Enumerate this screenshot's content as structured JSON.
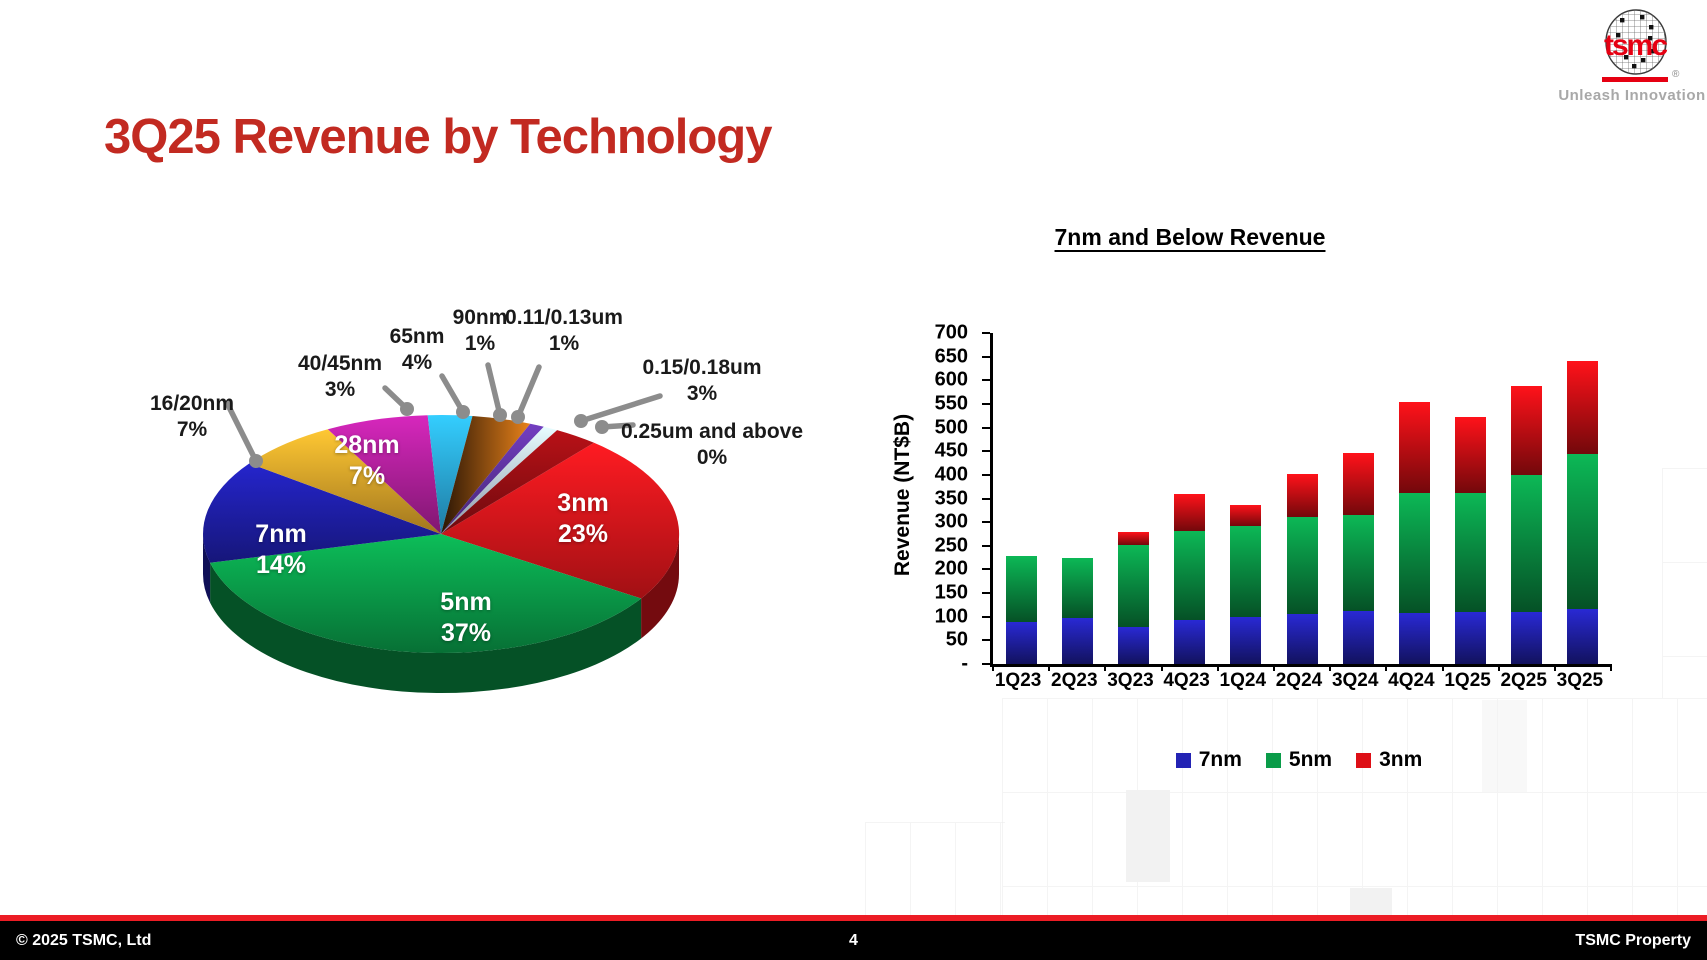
{
  "slide": {
    "title": "3Q25 Revenue by Technology",
    "logo": {
      "brand": "tsmc",
      "registered": "®",
      "tagline": "Unleash Innovation"
    },
    "footer": {
      "copyright": "© 2025 TSMC, Ltd",
      "page": "4",
      "property": "TSMC Property"
    }
  },
  "chart_data": [
    {
      "type": "pie",
      "title": "3Q25 Revenue by Technology",
      "unit": "%",
      "rotation_deg": 40,
      "leader_color": "#8C8C8C",
      "slices": [
        {
          "label": "3nm",
          "value": 23,
          "color": "#E0161C"
        },
        {
          "label": "5nm",
          "value": 37,
          "color": "#0A9C49"
        },
        {
          "label": "7nm",
          "value": 14,
          "color": "#1E1EA8"
        },
        {
          "label": "16/20nm",
          "value": 7,
          "color": "#E0A42A"
        },
        {
          "label": "28nm",
          "value": 7,
          "color": "#B0209B"
        },
        {
          "label": "40/45nm",
          "value": 3,
          "color": "#2BA9E0"
        },
        {
          "label": "65nm",
          "value": 4,
          "color": "#DD7D14",
          "grad_dir": "h",
          "grad_stops": [
            "#2A1505",
            "#E8821A"
          ]
        },
        {
          "label": "90nm",
          "value": 1,
          "color": "#5E339E"
        },
        {
          "label": "0.11/0.13um",
          "value": 1,
          "color": "#BECFE8"
        },
        {
          "label": "0.15/0.18um",
          "value": 3,
          "color": "#980E13"
        },
        {
          "label": "0.25um and above",
          "value": 0,
          "color": "#7A060B"
        }
      ]
    },
    {
      "type": "bar",
      "stacked": true,
      "title": "7nm and Below Revenue",
      "ylabel": "Revenue (NT$B)",
      "ylim": [
        0,
        700
      ],
      "ytick_step": 50,
      "ytick_labels": [
        "-",
        "50",
        "100",
        "150",
        "200",
        "250",
        "300",
        "350",
        "400",
        "450",
        "500",
        "550",
        "600",
        "650",
        "700"
      ],
      "legend_position": "bottom",
      "grid": false,
      "categories": [
        "1Q23",
        "2Q23",
        "3Q23",
        "4Q23",
        "1Q24",
        "2Q24",
        "3Q24",
        "4Q24",
        "1Q25",
        "2Q25",
        "3Q25"
      ],
      "series": [
        {
          "name": "7nm",
          "color": "#2323B4",
          "values": [
            88,
            97,
            78,
            93,
            100,
            105,
            112,
            107,
            109,
            110,
            117
          ]
        },
        {
          "name": "5nm",
          "color": "#0A9C49",
          "values": [
            140,
            128,
            174,
            189,
            192,
            206,
            204,
            254,
            253,
            289,
            327
          ]
        },
        {
          "name": "3nm",
          "color": "#DE0F16",
          "values": [
            0,
            0,
            28,
            78,
            45,
            90,
            130,
            194,
            160,
            189,
            196
          ]
        }
      ]
    }
  ]
}
